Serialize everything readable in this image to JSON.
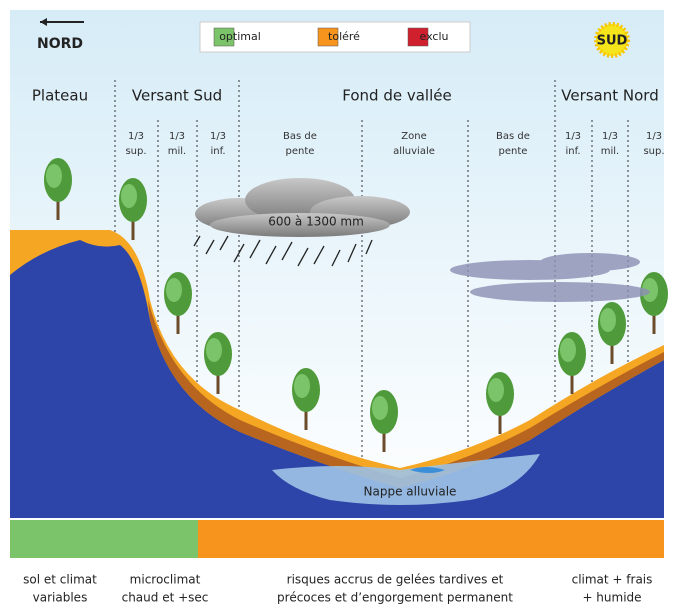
{
  "compass": {
    "north": "NORD",
    "south": "SUD"
  },
  "legend": [
    {
      "label": "optimal",
      "color": "#7cc46a"
    },
    {
      "label": "toléré",
      "color": "#f7941d"
    },
    {
      "label": "exclu",
      "color": "#d0202e"
    }
  ],
  "zones": [
    "Plateau",
    "Versant Sud",
    "Fond de vallée",
    "Versant Nord"
  ],
  "subzones": [
    [
      "1/3",
      "sup."
    ],
    [
      "1/3",
      "mil."
    ],
    [
      "1/3",
      "inf."
    ],
    [
      "Bas de",
      "pente"
    ],
    [
      "Zone",
      "alluviale"
    ],
    [
      "Bas de",
      "pente"
    ],
    [
      "1/3",
      "inf."
    ],
    [
      "1/3",
      "mil."
    ],
    [
      "1/3",
      "sup."
    ]
  ],
  "rainfall": "600 à 1300 mm",
  "aquifer": "Nappe alluviale",
  "descriptions": [
    [
      "sol et climat",
      "variables"
    ],
    [
      "microclimat",
      "chaud et +sec"
    ],
    [
      "risques accrus de gelées tardives et",
      "précoces et d’engorgement permanent"
    ],
    [
      "climat + frais",
      "+ humide"
    ]
  ]
}
